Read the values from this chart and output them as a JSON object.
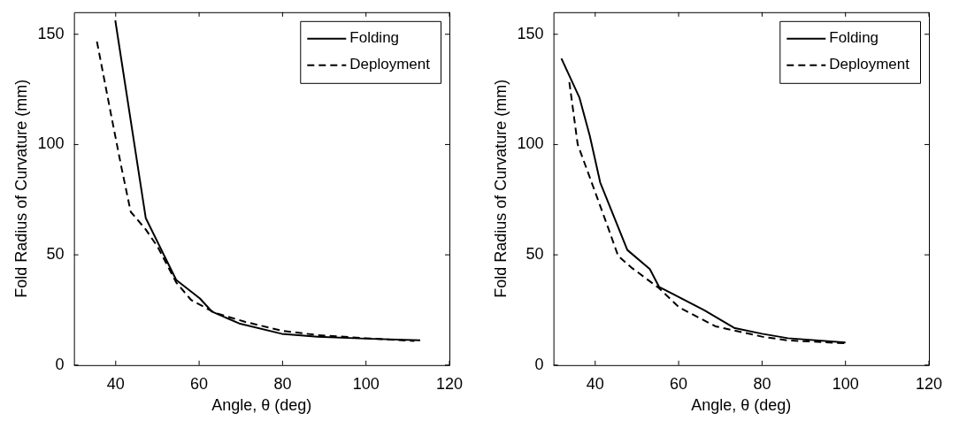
{
  "chart_data": [
    {
      "type": "line",
      "xlabel": "Angle, θ (deg)",
      "ylabel": "Fold Radius of Curvature (mm)",
      "xlim": [
        30,
        120
      ],
      "xticks": [
        40,
        60,
        80,
        100,
        120
      ],
      "ylim": [
        0,
        160
      ],
      "yticks": [
        0,
        50,
        100,
        150
      ],
      "grid": false,
      "legend": "top right",
      "marker": "none",
      "series": [
        {
          "name": "Folding",
          "color": "#000000",
          "line_style": "solid",
          "x": [
            39.9,
            47.2,
            54.5,
            60.2,
            63.1,
            69.6,
            79.8,
            88.4,
            100,
            113
          ],
          "values": [
            156.3,
            66.7,
            38.6,
            30.2,
            24.2,
            18.9,
            14.2,
            12.9,
            12,
            11.2
          ]
        },
        {
          "name": "Deployment",
          "color": "#000000",
          "line_style": "dashed",
          "x": [
            35.5,
            38.9,
            41.4,
            43.6,
            47.2,
            50.1,
            54.5,
            58.1,
            63.9,
            71.1,
            79.8,
            88.4,
            100,
            111.6
          ],
          "values": [
            146.7,
            113.4,
            89.4,
            69.5,
            61.5,
            53.5,
            37.5,
            29.5,
            23.6,
            19.6,
            15.6,
            13.6,
            12.2,
            10.9
          ]
        }
      ]
    },
    {
      "type": "line",
      "xlabel": "Angle, θ (deg)",
      "ylabel": "Fold Radius of Curvature (mm)",
      "xlim": [
        30,
        120
      ],
      "xticks": [
        40,
        60,
        80,
        100,
        120
      ],
      "ylim": [
        0,
        160
      ],
      "yticks": [
        0,
        50,
        100,
        150
      ],
      "grid": false,
      "legend": "top right",
      "marker": "none",
      "series": [
        {
          "name": "Folding",
          "color": "#000000",
          "line_style": "solid",
          "x": [
            31.9,
            36.2,
            38.7,
            41.2,
            47.7,
            53.1,
            55.3,
            66.1,
            73.3,
            80,
            86.2,
            100
          ],
          "values": [
            139,
            121.4,
            104,
            82.8,
            52.2,
            43.5,
            35.5,
            24.9,
            16.9,
            14.2,
            12.2,
            10.2
          ]
        },
        {
          "name": "Deployment",
          "color": "#000000",
          "line_style": "dashed",
          "x": [
            33.8,
            35.8,
            39.4,
            43,
            45.5,
            48.7,
            55.3,
            60.1,
            68.8,
            80,
            86.2,
            100
          ],
          "values": [
            128.3,
            100.1,
            81.5,
            62.8,
            49.5,
            44.2,
            34.9,
            26.2,
            17.6,
            12.9,
            11.2,
            9.9
          ]
        }
      ]
    }
  ]
}
